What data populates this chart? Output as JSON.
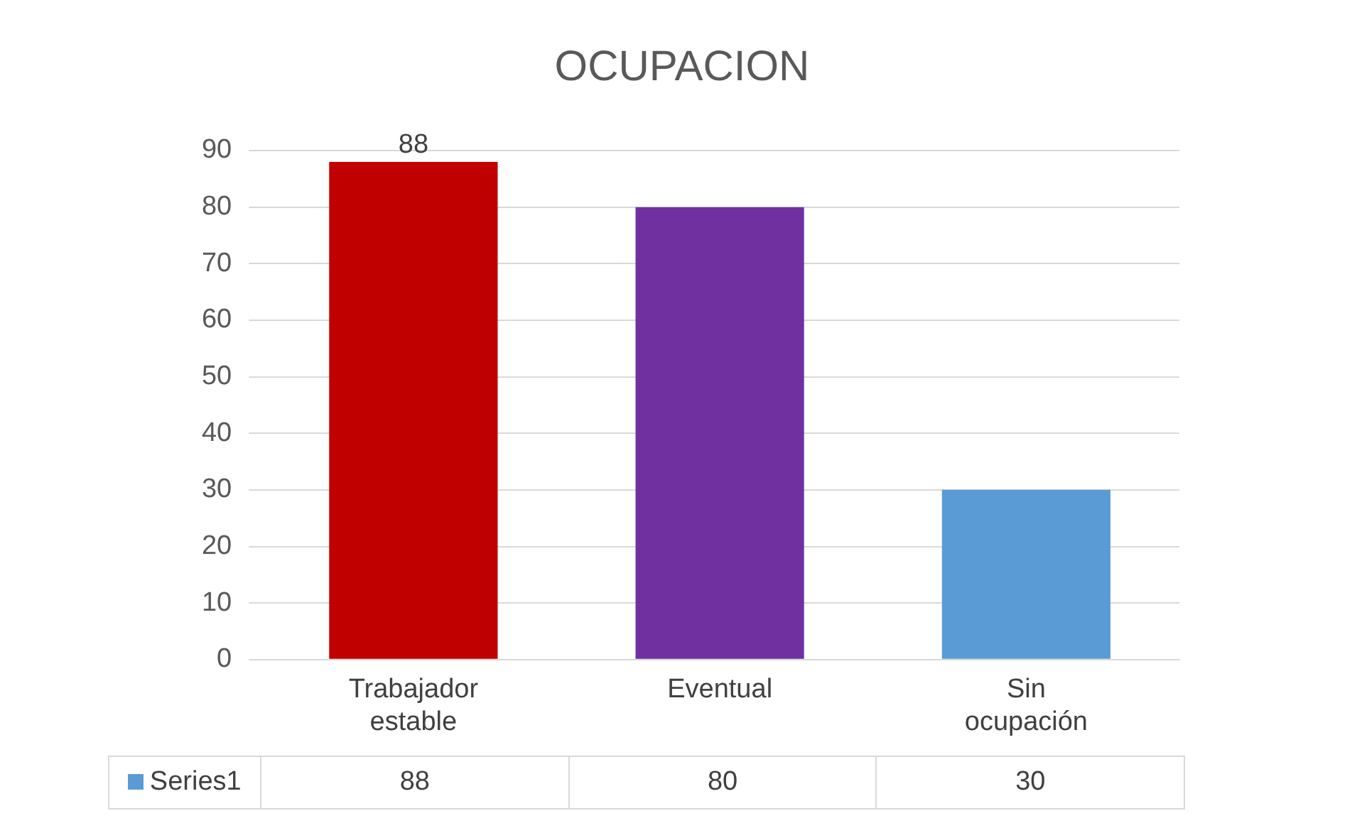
{
  "chart_data": {
    "type": "bar",
    "title": "OCUPACION",
    "categories": [
      "Trabajador estable",
      "Eventual",
      "Sin ocupación"
    ],
    "series": [
      {
        "name": "Series1",
        "color": "#5b9bd5",
        "colors": [
          "#c00000",
          "#7030a0",
          "#5b9bd5"
        ],
        "values": [
          88,
          80,
          30
        ]
      }
    ],
    "annotations": [
      {
        "text": "88",
        "x": "Trabajador estable",
        "y": 88
      }
    ],
    "ylim": [
      0,
      90
    ],
    "yticks": [
      0,
      10,
      20,
      30,
      40,
      50,
      60,
      70,
      80,
      90
    ],
    "grid": "y",
    "data_labels": true
  }
}
